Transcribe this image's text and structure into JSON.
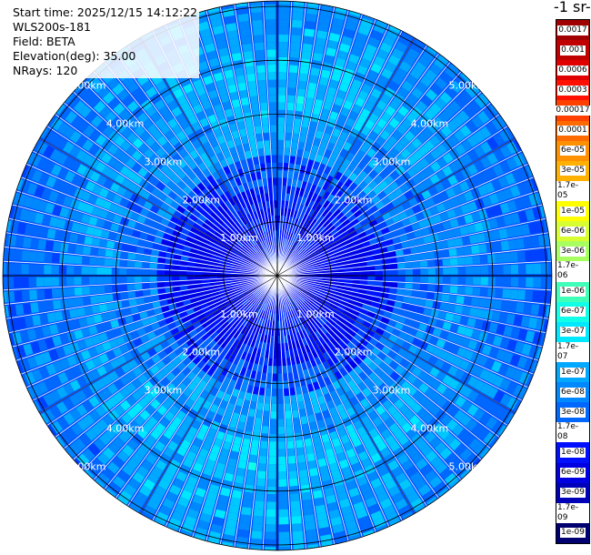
{
  "header": {
    "start_time": "Start time: 2025/12/15 14:12:22",
    "instrument": "WLS200s-181",
    "field": "Field: BETA",
    "elevation": "Elevation(deg): 35.00",
    "nrays": "NRays: 120"
  },
  "colorbar": {
    "title_fragment": "-1 sr-",
    "labels": [
      "0.0017",
      "0.001",
      "0.0006",
      "0.0003",
      "0.00017",
      "0.0001",
      "6e-05",
      "3e-05",
      "1.7e-05",
      "1e-05",
      "6e-06",
      "3e-06",
      "1.7e-06",
      "1e-06",
      "6e-07",
      "3e-07",
      "1.7e-07",
      "1e-07",
      "6e-08",
      "3e-08",
      "1.7e-08",
      "1e-08",
      "6e-09",
      "3e-09",
      "1.7e-09",
      "1e-09"
    ],
    "colors": [
      "#a00000",
      "#c00000",
      "#e00000",
      "#ff1000",
      "#ff4000",
      "#ff6a00",
      "#ff9000",
      "#ffb000",
      "#ffd000",
      "#ffff00",
      "#d8ff30",
      "#a8ff60",
      "#78ff88",
      "#40ffb8",
      "#10ffe8",
      "#00e8ff",
      "#00c8ff",
      "#00a8ff",
      "#0088ff",
      "#0068ff",
      "#0040ff",
      "#0010ff",
      "#0000e0",
      "#0000b8",
      "#000090",
      "#000070"
    ]
  },
  "chart_data": {
    "type": "heatmap",
    "title": "",
    "xlabel": "",
    "ylabel": "",
    "projection": "polar",
    "nrays": 120,
    "range_rings_km": [
      1,
      2,
      3,
      4,
      5
    ],
    "ring_labels": [
      "1.00km",
      "2.00km",
      "3.00km",
      "4.00km",
      "5.00km"
    ],
    "max_range_km": 5.1,
    "grid": true,
    "colorbar_range": [
      1e-09,
      0.0017
    ],
    "colorbar_scale": "log"
  }
}
